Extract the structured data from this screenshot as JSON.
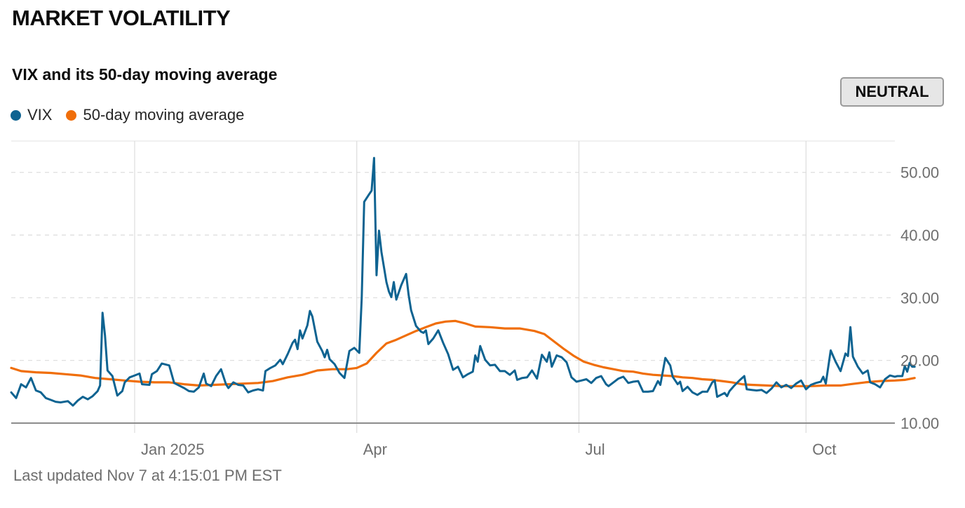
{
  "header": {
    "title": "MARKET VOLATILITY"
  },
  "status": {
    "label": "NEUTRAL"
  },
  "footer": {
    "updated": "Last updated Nov 7 at 4:15:01 PM EST"
  },
  "colors": {
    "vix": "#0e6391",
    "ma": "#f06e0a",
    "grid": "#dcdcdc",
    "axis": "#8c8c8c"
  },
  "chart_data": {
    "type": "line",
    "title": "VIX and its 50-day moving average",
    "xlabel": "",
    "ylabel": "",
    "ylim": [
      10,
      55
    ],
    "xlim": [
      0,
      358
    ],
    "y_ticks": [
      {
        "value": 10,
        "label": "10.00"
      },
      {
        "value": 20,
        "label": "20.00"
      },
      {
        "value": 30,
        "label": "30.00"
      },
      {
        "value": 40,
        "label": "40.00"
      },
      {
        "value": 50,
        "label": "50.00"
      }
    ],
    "x_ticks": [
      {
        "day": 50,
        "label": "Jan 2025"
      },
      {
        "day": 140,
        "label": "Apr"
      },
      {
        "day": 230,
        "label": "Jul"
      },
      {
        "day": 322,
        "label": "Oct"
      }
    ],
    "series": [
      {
        "name": "VIX",
        "points": [
          [
            0,
            14.9
          ],
          [
            2,
            14
          ],
          [
            4,
            16.2
          ],
          [
            6,
            15.7
          ],
          [
            8,
            17.2
          ],
          [
            10,
            15.2
          ],
          [
            12,
            14.9
          ],
          [
            14,
            14
          ],
          [
            16,
            13.7
          ],
          [
            18,
            13.4
          ],
          [
            20,
            13.3
          ],
          [
            23,
            13.5
          ],
          [
            25,
            12.8
          ],
          [
            27,
            13.6
          ],
          [
            29,
            14.2
          ],
          [
            31,
            13.8
          ],
          [
            33,
            14.3
          ],
          [
            35,
            15.1
          ],
          [
            36,
            16
          ],
          [
            37,
            27.6
          ],
          [
            38,
            24
          ],
          [
            39,
            18.4
          ],
          [
            41,
            17.5
          ],
          [
            43,
            14.4
          ],
          [
            45,
            15.1
          ],
          [
            46,
            16.5
          ],
          [
            48,
            17.3
          ],
          [
            50,
            17.6
          ],
          [
            52,
            17.9
          ],
          [
            53,
            16.2
          ],
          [
            56,
            16.1
          ],
          [
            57,
            17.8
          ],
          [
            59,
            18.3
          ],
          [
            61,
            19.5
          ],
          [
            64,
            19.2
          ],
          [
            66,
            16.4
          ],
          [
            68,
            16
          ],
          [
            70,
            15.6
          ],
          [
            72,
            15.1
          ],
          [
            74,
            15
          ],
          [
            76,
            15.7
          ],
          [
            78,
            17.9
          ],
          [
            79,
            16.3
          ],
          [
            81,
            15.9
          ],
          [
            83,
            17.5
          ],
          [
            85,
            18.6
          ],
          [
            87,
            16.2
          ],
          [
            88,
            15.6
          ],
          [
            90,
            16.5
          ],
          [
            92,
            16.1
          ],
          [
            94,
            16
          ],
          [
            96,
            14.9
          ],
          [
            98,
            15.2
          ],
          [
            100,
            15.4
          ],
          [
            102,
            15.2
          ],
          [
            103,
            18.3
          ],
          [
            105,
            18.8
          ],
          [
            107,
            19.2
          ],
          [
            109,
            20.1
          ],
          [
            110,
            19.4
          ],
          [
            112,
            21
          ],
          [
            114,
            22.8
          ],
          [
            115,
            23.3
          ],
          [
            116,
            21.8
          ],
          [
            117,
            24.8
          ],
          [
            118,
            23.5
          ],
          [
            120,
            25.6
          ],
          [
            121,
            27.9
          ],
          [
            122,
            27
          ],
          [
            124,
            23
          ],
          [
            126,
            21.5
          ],
          [
            127,
            20.5
          ],
          [
            128,
            21.7
          ],
          [
            129,
            20.2
          ],
          [
            131,
            19.4
          ],
          [
            133,
            18
          ],
          [
            135,
            17.2
          ],
          [
            137,
            21.5
          ],
          [
            139,
            22
          ],
          [
            141,
            21.2
          ],
          [
            142,
            30
          ],
          [
            143,
            45.3
          ],
          [
            145,
            46.5
          ],
          [
            146,
            47.1
          ],
          [
            147,
            52.3
          ],
          [
            148,
            33.6
          ],
          [
            149,
            40.7
          ],
          [
            150,
            37.3
          ],
          [
            152,
            32.5
          ],
          [
            153,
            31
          ],
          [
            154,
            30.1
          ],
          [
            155,
            32.5
          ],
          [
            156,
            29.7
          ],
          [
            158,
            32
          ],
          [
            160,
            33.8
          ],
          [
            161,
            30.5
          ],
          [
            162,
            28
          ],
          [
            164,
            25.5
          ],
          [
            166,
            24.6
          ],
          [
            167,
            24.4
          ],
          [
            168,
            24.8
          ],
          [
            169,
            22.6
          ],
          [
            171,
            23.5
          ],
          [
            173,
            24.8
          ],
          [
            175,
            22.8
          ],
          [
            177,
            21
          ],
          [
            179,
            18.5
          ],
          [
            181,
            19
          ],
          [
            183,
            17.3
          ],
          [
            185,
            17.8
          ],
          [
            187,
            18.2
          ],
          [
            188,
            20.8
          ],
          [
            189,
            19.8
          ],
          [
            190,
            22.3
          ],
          [
            192,
            20.1
          ],
          [
            194,
            19.2
          ],
          [
            196,
            19.3
          ],
          [
            198,
            18.3
          ],
          [
            200,
            18.3
          ],
          [
            202,
            17.7
          ],
          [
            204,
            18.4
          ],
          [
            205,
            16.9
          ],
          [
            207,
            17.2
          ],
          [
            209,
            17.3
          ],
          [
            211,
            18.4
          ],
          [
            213,
            17.1
          ],
          [
            215,
            20.9
          ],
          [
            217,
            19.8
          ],
          [
            218,
            21.3
          ],
          [
            219,
            19
          ],
          [
            221,
            20.8
          ],
          [
            223,
            20.5
          ],
          [
            225,
            19.7
          ],
          [
            227,
            17.3
          ],
          [
            229,
            16.6
          ],
          [
            231,
            16.8
          ],
          [
            233,
            17
          ],
          [
            235,
            16.4
          ],
          [
            237,
            17.2
          ],
          [
            239,
            17.5
          ],
          [
            241,
            16.2
          ],
          [
            242,
            15.9
          ],
          [
            244,
            16.5
          ],
          [
            246,
            17.1
          ],
          [
            248,
            17.4
          ],
          [
            250,
            16.4
          ],
          [
            252,
            16.6
          ],
          [
            254,
            16.7
          ],
          [
            256,
            15
          ],
          [
            258,
            15
          ],
          [
            260,
            15.1
          ],
          [
            262,
            16.7
          ],
          [
            263,
            16.1
          ],
          [
            265,
            20.4
          ],
          [
            267,
            19.2
          ],
          [
            268,
            17.4
          ],
          [
            270,
            16.2
          ],
          [
            271,
            16.6
          ],
          [
            272,
            15.1
          ],
          [
            274,
            15.8
          ],
          [
            276,
            14.9
          ],
          [
            278,
            14.5
          ],
          [
            280,
            15
          ],
          [
            282,
            15
          ],
          [
            284,
            16.5
          ],
          [
            285,
            16.8
          ],
          [
            286,
            14.2
          ],
          [
            288,
            14.6
          ],
          [
            289,
            14.8
          ],
          [
            290,
            14.3
          ],
          [
            291,
            15.1
          ],
          [
            293,
            16
          ],
          [
            295,
            16.8
          ],
          [
            297,
            17.5
          ],
          [
            298,
            15.4
          ],
          [
            300,
            15.3
          ],
          [
            302,
            15.2
          ],
          [
            304,
            15.3
          ],
          [
            306,
            14.8
          ],
          [
            308,
            15.5
          ],
          [
            310,
            16.5
          ],
          [
            312,
            15.7
          ],
          [
            314,
            16.1
          ],
          [
            316,
            15.6
          ],
          [
            318,
            16.3
          ],
          [
            320,
            16.8
          ],
          [
            322,
            15.4
          ],
          [
            324,
            16.1
          ],
          [
            326,
            16.4
          ],
          [
            328,
            16.6
          ],
          [
            329,
            17.4
          ],
          [
            330,
            16.3
          ],
          [
            332,
            21.6
          ],
          [
            334,
            19.8
          ],
          [
            336,
            18.3
          ],
          [
            338,
            21.1
          ],
          [
            339,
            20.7
          ],
          [
            340,
            25.3
          ],
          [
            341,
            20.6
          ],
          [
            343,
            19
          ],
          [
            345,
            17.9
          ],
          [
            347,
            18.4
          ],
          [
            348,
            16.5
          ],
          [
            350,
            16.2
          ],
          [
            352,
            15.7
          ],
          [
            354,
            17
          ],
          [
            356,
            17.6
          ],
          [
            358,
            17.4
          ],
          [
            359,
            17.5
          ],
          [
            361,
            17.5
          ],
          [
            362,
            19.1
          ],
          [
            363,
            18.2
          ],
          [
            364,
            19.6
          ],
          [
            365,
            19
          ],
          [
            366,
            19
          ]
        ]
      },
      {
        "name": "50-day moving average",
        "points": [
          [
            0,
            18.8
          ],
          [
            4,
            18.3
          ],
          [
            10,
            18.1
          ],
          [
            16,
            18
          ],
          [
            22,
            17.8
          ],
          [
            28,
            17.6
          ],
          [
            34,
            17.2
          ],
          [
            40,
            17
          ],
          [
            46,
            16.8
          ],
          [
            52,
            16.6
          ],
          [
            58,
            16.5
          ],
          [
            64,
            16.5
          ],
          [
            70,
            16.2
          ],
          [
            76,
            16
          ],
          [
            82,
            16.1
          ],
          [
            88,
            16.2
          ],
          [
            94,
            16.3
          ],
          [
            100,
            16.4
          ],
          [
            106,
            16.7
          ],
          [
            112,
            17.3
          ],
          [
            118,
            17.7
          ],
          [
            124,
            18.4
          ],
          [
            130,
            18.6
          ],
          [
            136,
            18.6
          ],
          [
            140,
            18.8
          ],
          [
            144,
            19.5
          ],
          [
            148,
            21.2
          ],
          [
            152,
            22.7
          ],
          [
            156,
            23.3
          ],
          [
            160,
            24
          ],
          [
            164,
            24.7
          ],
          [
            168,
            25.3
          ],
          [
            172,
            25.9
          ],
          [
            176,
            26.2
          ],
          [
            180,
            26.3
          ],
          [
            184,
            25.9
          ],
          [
            188,
            25.4
          ],
          [
            194,
            25.3
          ],
          [
            200,
            25.1
          ],
          [
            206,
            25.1
          ],
          [
            212,
            24.7
          ],
          [
            216,
            24.2
          ],
          [
            220,
            23
          ],
          [
            224,
            21.8
          ],
          [
            228,
            20.7
          ],
          [
            232,
            19.8
          ],
          [
            236,
            19.3
          ],
          [
            240,
            18.9
          ],
          [
            244,
            18.6
          ],
          [
            248,
            18.3
          ],
          [
            252,
            18.2
          ],
          [
            256,
            17.9
          ],
          [
            260,
            17.7
          ],
          [
            264,
            17.6
          ],
          [
            268,
            17.5
          ],
          [
            272,
            17.3
          ],
          [
            276,
            17.2
          ],
          [
            280,
            17
          ],
          [
            284,
            16.9
          ],
          [
            288,
            16.7
          ],
          [
            292,
            16.5
          ],
          [
            296,
            16.2
          ],
          [
            300,
            16.1
          ],
          [
            306,
            16
          ],
          [
            312,
            15.9
          ],
          [
            318,
            15.9
          ],
          [
            324,
            15.9
          ],
          [
            330,
            16
          ],
          [
            336,
            16
          ],
          [
            340,
            16.2
          ],
          [
            346,
            16.5
          ],
          [
            352,
            16.7
          ],
          [
            358,
            16.8
          ],
          [
            362,
            16.9
          ],
          [
            366,
            17.2
          ]
        ]
      }
    ]
  }
}
